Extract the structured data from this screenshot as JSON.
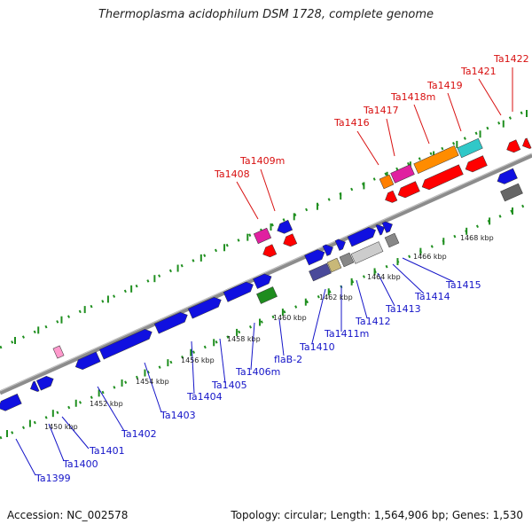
{
  "title": "Thermoplasma acidophilum DSM 1728, complete genome",
  "footer": {
    "accession": "Accession: NC_002578",
    "summary": "Topology: circular; Length: 1,564,906 bp; Genes: 1,530"
  },
  "colors": {
    "backbone": "#8c8c8c",
    "tick": "#1f8f1f",
    "label_blue": "#1414c8",
    "label_red": "#d81010"
  },
  "kbp_labels": [
    "1450 kbp",
    "1452 kbp",
    "1454 kbp",
    "1456 kbp",
    "1458 kbp",
    "1460 kbp",
    "1462 kbp",
    "1464 kbp",
    "1466 kbp",
    "1468 kbp"
  ],
  "genes_lower": [
    "Ta1399",
    "Ta1400",
    "Ta1401",
    "Ta1402",
    "Ta1403",
    "Ta1404",
    "Ta1405",
    "Ta1406m",
    "flaB-2",
    "Ta1410",
    "Ta1411m",
    "Ta1412",
    "Ta1413",
    "Ta1414",
    "Ta1415"
  ],
  "genes_upper": [
    "Ta1408",
    "Ta1409m",
    "Ta1416",
    "Ta1417",
    "Ta1418m",
    "Ta1419",
    "Ta1421",
    "Ta1422"
  ]
}
